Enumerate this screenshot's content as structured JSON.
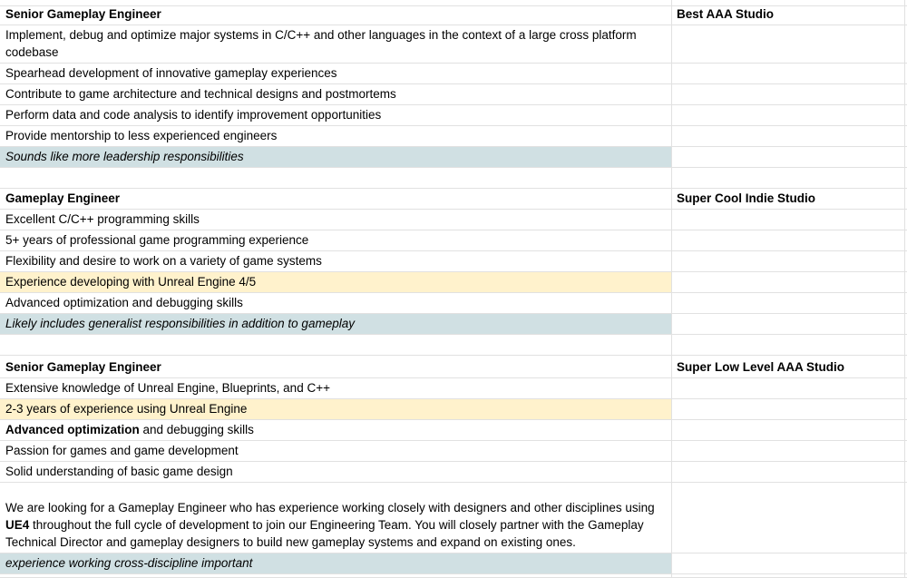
{
  "theme": {
    "background": "#ffffff",
    "text": "#000000",
    "gridline": "#e1e1e1",
    "highlight_blue": "#d0e0e3",
    "highlight_yellow": "#fff2cc"
  },
  "sheet": {
    "rows": [
      {
        "h": 7
      },
      {
        "h": 21,
        "a": {
          "text": "Senior Gameplay Engineer",
          "bold": true
        },
        "b": {
          "text": "Best AAA Studio",
          "bold": true
        }
      },
      {
        "h": 42,
        "a": {
          "text": "Implement, debug and optimize major systems in C/C++ and other languages in the context of a large cross platform codebase"
        }
      },
      {
        "h": 23,
        "a": {
          "text": "Spearhead development of innovative gameplay experiences"
        }
      },
      {
        "h": 23,
        "a": {
          "text": "Contribute to game architecture and technical designs and postmortems"
        }
      },
      {
        "h": 23,
        "a": {
          "text": "Perform data and code analysis to identify improvement opportunities"
        }
      },
      {
        "h": 23,
        "a": {
          "text": "Provide mentorship to less experienced engineers"
        }
      },
      {
        "h": 23,
        "a": {
          "text": "Sounds like more leadership responsibilities",
          "italic": true,
          "bg": "blue"
        }
      },
      {
        "h": 23
      },
      {
        "h": 23,
        "a": {
          "text": "Gameplay Engineer",
          "bold": true
        },
        "b": {
          "text": "Super Cool Indie Studio",
          "bold": true
        }
      },
      {
        "h": 23,
        "a": {
          "text": "Excellent C/C++ programming skills"
        }
      },
      {
        "h": 23,
        "a": {
          "text": "5+ years of professional game programming experience"
        }
      },
      {
        "h": 23,
        "a": {
          "text": "Flexibility and desire to work on a variety of game systems"
        }
      },
      {
        "h": 23,
        "a": {
          "text": "Experience developing with Unreal Engine 4/5",
          "bg": "yellow"
        }
      },
      {
        "h": 23,
        "a": {
          "text": "Advanced optimization and debugging skills"
        }
      },
      {
        "h": 23,
        "a": {
          "text": "Likely includes generalist responsibilities in addition to gameplay",
          "italic": true,
          "bg": "blue"
        }
      },
      {
        "h": 23
      },
      {
        "h": 25,
        "a": {
          "text": "Senior Gameplay Engineer",
          "bold": true
        },
        "b": {
          "text": "Super Low Level AAA Studio",
          "bold": true
        }
      },
      {
        "h": 23,
        "a": {
          "text": "Extensive knowledge of Unreal Engine, Blueprints, and C++"
        }
      },
      {
        "h": 23,
        "a": {
          "text": "2-3 years of experience using Unreal Engine",
          "bg": "yellow"
        }
      },
      {
        "h": 23,
        "a": {
          "segments": [
            {
              "text": "Advanced optimization",
              "bold": true
            },
            {
              "text": " and debugging skills"
            }
          ]
        }
      },
      {
        "h": 23,
        "a": {
          "text": "Passion for games and game development"
        }
      },
      {
        "h": 23,
        "a": {
          "text": "Solid understanding of basic game design"
        }
      },
      {
        "h": 78,
        "a": {
          "segments": [
            {
              "text": "We are looking for a Gameplay Engineer who has experience working closely with designers and other disciplines using "
            },
            {
              "text": "UE4",
              "bold": true
            },
            {
              "text": " throughout the full cycle of development to join our Engineering Team. You will closely partner with the Gameplay Technical Director and gameplay designers to build new gameplay systems and expand on existing ones."
            }
          ]
        }
      },
      {
        "h": 23,
        "a": {
          "text": "experience working cross-discipline important",
          "italic": true,
          "bg": "blue"
        }
      },
      {
        "h": 4
      }
    ]
  }
}
